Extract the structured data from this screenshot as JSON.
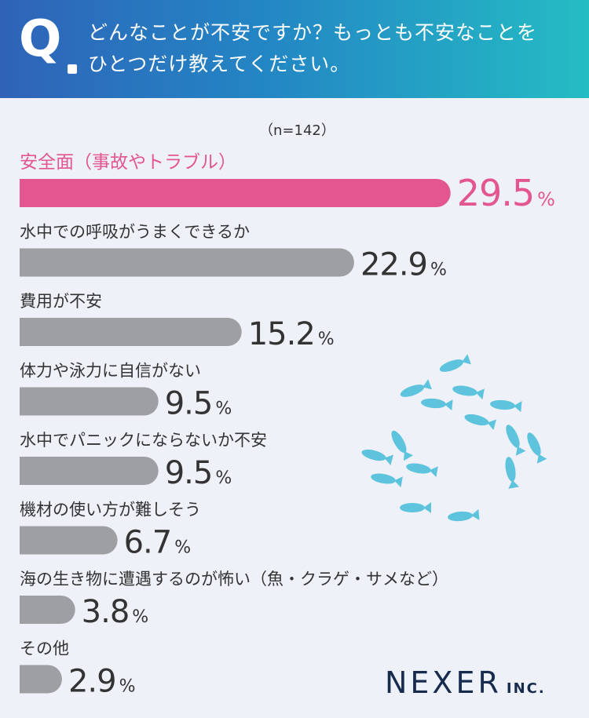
{
  "header": {
    "q_mark": "Q",
    "question_line1": "どんなことが不安ですか？もっとも不安なことを",
    "question_line2": "ひとつだけ教えてください。"
  },
  "sample_size": "（n=142）",
  "logo": {
    "name": "NEXER",
    "suffix": "INC."
  },
  "colors": {
    "highlight": "#e35690",
    "bar": "#9e9fa3",
    "label_highlight": "#e35690",
    "fish": "#5ec3dd"
  },
  "chart_data": {
    "type": "bar",
    "orientation": "horizontal",
    "unit": "%",
    "categories": [
      "安全面（事故やトラブル）",
      "水中での呼吸がうまくできるか",
      "費用が不安",
      "体力や泳力に自信がない",
      "水中でパニックにならないか不安",
      "機材の使い方が難しそう",
      "海の生き物に遭遇するのが怖い（魚・クラゲ・サメなど）",
      "その他"
    ],
    "values": [
      29.5,
      22.9,
      15.2,
      9.5,
      9.5,
      6.7,
      3.8,
      2.9
    ],
    "value_labels": [
      "29.5",
      "22.9",
      "15.2",
      "9.5",
      "9.5",
      "6.7",
      "3.8",
      "2.9"
    ],
    "highlight_index": 0
  }
}
